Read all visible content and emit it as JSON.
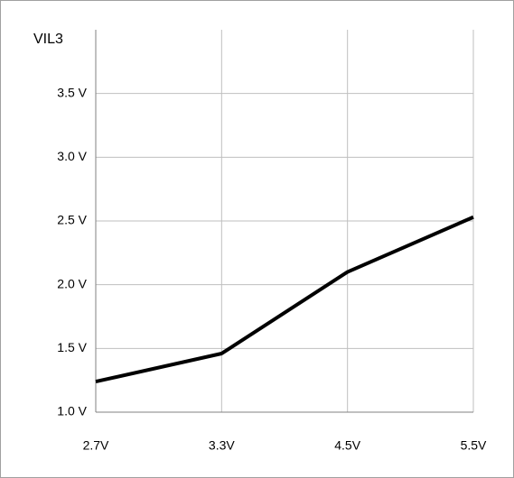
{
  "chart_data": {
    "type": "line",
    "title": "VIL3",
    "categories": [
      "2.7V",
      "3.3V",
      "4.5V",
      "5.5V"
    ],
    "series": [
      {
        "name": "VIL3",
        "color": "#000000",
        "values": [
          1.24,
          1.46,
          2.1,
          2.53
        ]
      }
    ],
    "ylim": [
      1.0,
      4.0
    ],
    "yticks": [
      {
        "value": 1.0,
        "label": "1.0 V"
      },
      {
        "value": 1.5,
        "label": "1.5 V"
      },
      {
        "value": 2.0,
        "label": "2.0 V"
      },
      {
        "value": 2.5,
        "label": "2.5 V"
      },
      {
        "value": 3.0,
        "label": "3.0 V"
      },
      {
        "value": 3.5,
        "label": "3.5 V"
      }
    ],
    "grid": true
  }
}
